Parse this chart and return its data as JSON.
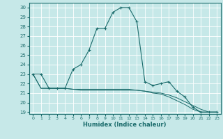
{
  "xlabel": "Humidex (Indice chaleur)",
  "xlim": [
    -0.5,
    23.5
  ],
  "ylim": [
    18.8,
    30.5
  ],
  "yticks": [
    19,
    20,
    21,
    22,
    23,
    24,
    25,
    26,
    27,
    28,
    29,
    30
  ],
  "xticks": [
    0,
    1,
    2,
    3,
    4,
    5,
    6,
    7,
    8,
    9,
    10,
    11,
    12,
    13,
    14,
    15,
    16,
    17,
    18,
    19,
    20,
    21,
    22,
    23
  ],
  "bg_color": "#c6e8e8",
  "line_color": "#1a6b6b",
  "grid_color": "#ffffff",
  "curve1_x": [
    0,
    1,
    2,
    3,
    4,
    5,
    6,
    7,
    8,
    9,
    10,
    11,
    12,
    13,
    14,
    15,
    16,
    17,
    18,
    19,
    20,
    21,
    22,
    23
  ],
  "curve1_y": [
    23.0,
    23.0,
    21.5,
    21.5,
    21.5,
    23.5,
    24.0,
    25.5,
    27.8,
    27.8,
    29.5,
    30.0,
    30.0,
    28.5,
    22.2,
    21.8,
    22.0,
    22.2,
    21.2,
    20.6,
    19.5,
    19.0,
    19.0,
    19.0
  ],
  "curve2_x": [
    0,
    1,
    2,
    3,
    4,
    5,
    6,
    7,
    8,
    9,
    10,
    11,
    12,
    13,
    14,
    15,
    16,
    17,
    18,
    19,
    20,
    21,
    22,
    23
  ],
  "curve2_y": [
    23.0,
    21.5,
    21.5,
    21.5,
    21.5,
    21.4,
    21.3,
    21.3,
    21.3,
    21.3,
    21.3,
    21.3,
    21.3,
    21.3,
    21.2,
    21.1,
    21.0,
    20.8,
    20.5,
    20.1,
    19.7,
    19.3,
    19.0,
    19.0
  ],
  "curve3_x": [
    0,
    1,
    2,
    3,
    4,
    5,
    6,
    7,
    8,
    9,
    10,
    11,
    12,
    13,
    14,
    15,
    16,
    17,
    18,
    19,
    20,
    21,
    22,
    23
  ],
  "curve3_y": [
    23.0,
    21.5,
    21.5,
    21.5,
    21.5,
    21.4,
    21.4,
    21.4,
    21.4,
    21.4,
    21.4,
    21.4,
    21.4,
    21.3,
    21.2,
    21.0,
    20.9,
    20.6,
    20.2,
    19.8,
    19.3,
    19.0,
    19.0,
    19.0
  ]
}
